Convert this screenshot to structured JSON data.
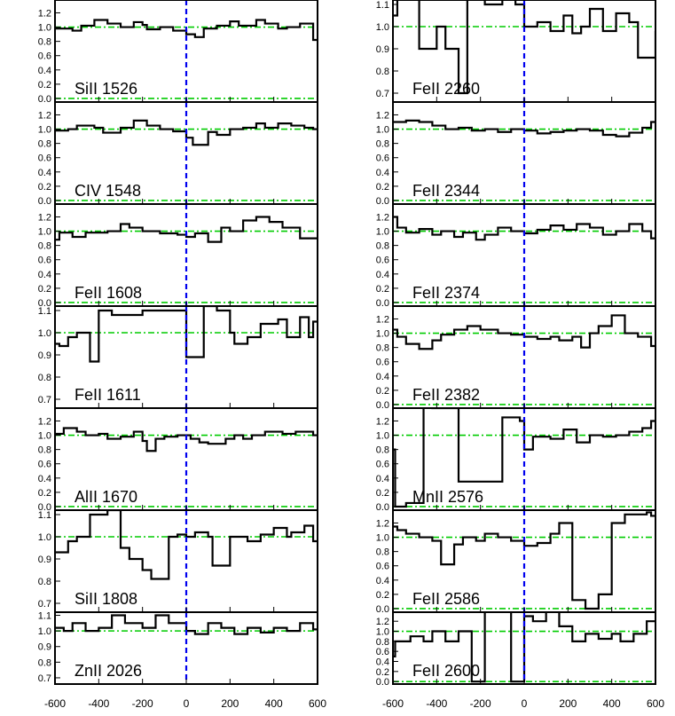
{
  "chart_data": {
    "type": "line",
    "xlabel": "",
    "ylabel": "",
    "xlim": [
      -600,
      600
    ],
    "xticks": [
      -600,
      -400,
      -200,
      0,
      200,
      400,
      600
    ],
    "grid": false,
    "reference_lines": {
      "continuum": [
        0.0,
        1.0
      ],
      "zero_velocity": 0
    },
    "colors": {
      "spectrum": "#000000",
      "continuum": "#00cc00",
      "zero": "#0000ee"
    },
    "columns": [
      {
        "panels": [
          {
            "label": "SiII 1526",
            "ylim": [
              -0.05,
              1.38
            ],
            "yticks": [
              0.0,
              0.2,
              0.4,
              0.6,
              0.8,
              1.0,
              1.2
            ],
            "step_x": [
              -600,
              -520,
              -480,
              -420,
              -360,
              -300,
              -240,
              -200,
              -180,
              -120,
              -60,
              0,
              40,
              80,
              140,
              200,
              240,
              320,
              360,
              420,
              460,
              520,
              580,
              600
            ],
            "step_y": [
              0.98,
              0.95,
              1.02,
              1.1,
              1.05,
              1.0,
              1.07,
              1.03,
              0.97,
              1.0,
              0.95,
              0.9,
              0.86,
              0.98,
              1.02,
              1.08,
              1.02,
              1.1,
              1.05,
              0.98,
              1.0,
              1.05,
              0.82,
              0.82
            ]
          },
          {
            "label": "CIV 1548",
            "ylim": [
              -0.05,
              1.38
            ],
            "yticks": [
              0.0,
              0.2,
              0.4,
              0.6,
              0.8,
              1.0,
              1.2
            ],
            "step_x": [
              -600,
              -540,
              -500,
              -420,
              -380,
              -300,
              -240,
              -180,
              -120,
              -60,
              0,
              30,
              100,
              140,
              200,
              260,
              320,
              360,
              420,
              480,
              540,
              580,
              600
            ],
            "step_y": [
              0.98,
              1.0,
              1.05,
              1.02,
              0.95,
              1.02,
              1.12,
              1.05,
              1.0,
              0.97,
              0.88,
              0.78,
              0.96,
              0.92,
              1.0,
              1.02,
              1.08,
              1.02,
              1.08,
              1.05,
              1.02,
              1.0,
              1.0
            ]
          },
          {
            "label": "FeII 1608",
            "ylim": [
              -0.05,
              1.38
            ],
            "yticks": [
              0.0,
              0.2,
              0.4,
              0.6,
              0.8,
              1.0,
              1.2
            ],
            "step_x": [
              -600,
              -580,
              -520,
              -460,
              -360,
              -300,
              -260,
              -200,
              -120,
              -40,
              0,
              40,
              100,
              160,
              200,
              260,
              320,
              380,
              440,
              520,
              580,
              600
            ],
            "step_y": [
              0.88,
              0.98,
              0.92,
              0.98,
              1.0,
              1.1,
              1.05,
              1.0,
              0.97,
              0.95,
              0.92,
              0.97,
              0.85,
              1.05,
              1.0,
              1.15,
              1.2,
              1.13,
              1.05,
              0.9,
              0.9,
              0.9
            ]
          },
          {
            "label": "FeII 1611",
            "ylim": [
              0.66,
              1.12
            ],
            "yticks": [
              0.7,
              0.8,
              0.9,
              1.0,
              1.1
            ],
            "step_x": [
              -600,
              -580,
              -540,
              -500,
              -440,
              -400,
              -340,
              -200,
              -60,
              0,
              80,
              140,
              200,
              220,
              280,
              340,
              420,
              460,
              520,
              560,
              580,
              600
            ],
            "step_y": [
              0.95,
              0.94,
              0.98,
              1.0,
              0.87,
              1.1,
              1.08,
              1.1,
              1.1,
              0.89,
              1.12,
              1.1,
              1.0,
              0.95,
              0.98,
              1.04,
              1.06,
              0.98,
              1.07,
              0.98,
              1.05,
              1.05
            ]
          },
          {
            "label": "AlII 1670",
            "ylim": [
              -0.05,
              1.38
            ],
            "yticks": [
              0.0,
              0.2,
              0.4,
              0.6,
              0.8,
              1.0,
              1.2
            ],
            "step_x": [
              -600,
              -560,
              -500,
              -460,
              -400,
              -360,
              -300,
              -240,
              -200,
              -180,
              -140,
              -100,
              -40,
              20,
              60,
              100,
              180,
              220,
              260,
              300,
              360,
              440,
              500,
              580,
              600
            ],
            "step_y": [
              1.02,
              1.1,
              1.05,
              1.0,
              1.02,
              0.95,
              0.98,
              1.05,
              0.92,
              0.78,
              0.95,
              0.98,
              1.0,
              0.95,
              0.9,
              0.88,
              0.95,
              1.0,
              0.95,
              1.0,
              1.05,
              1.02,
              1.05,
              1.0,
              1.0
            ]
          },
          {
            "label": "SiII 1808",
            "ylim": [
              0.66,
              1.12
            ],
            "yticks": [
              0.7,
              0.8,
              0.9,
              1.0,
              1.1
            ],
            "step_x": [
              -600,
              -540,
              -500,
              -440,
              -360,
              -300,
              -260,
              -200,
              -160,
              -80,
              -40,
              0,
              40,
              100,
              120,
              200,
              280,
              340,
              400,
              460,
              480,
              540,
              580,
              600
            ],
            "step_y": [
              0.93,
              0.98,
              1.0,
              1.1,
              1.12,
              0.95,
              0.9,
              0.85,
              0.81,
              1.0,
              1.01,
              1.0,
              1.02,
              1.0,
              0.87,
              1.0,
              0.98,
              1.01,
              1.04,
              1.0,
              1.02,
              1.05,
              0.98,
              0.98
            ]
          },
          {
            "label": "ZnII 2026",
            "ylim": [
              0.66,
              1.12
            ],
            "yticks": [
              0.7,
              0.8,
              0.9,
              1.0,
              1.1
            ],
            "step_x": [
              -600,
              -560,
              -520,
              -460,
              -400,
              -340,
              -280,
              -200,
              -140,
              -80,
              0,
              40,
              100,
              160,
              220,
              280,
              340,
              400,
              460,
              520,
              580,
              600
            ],
            "step_y": [
              1.02,
              1.0,
              1.05,
              1.0,
              1.02,
              1.1,
              1.05,
              1.02,
              1.1,
              1.05,
              1.0,
              0.98,
              1.05,
              1.02,
              0.98,
              1.02,
              0.99,
              1.02,
              1.0,
              1.05,
              1.01,
              1.01
            ]
          }
        ]
      },
      {
        "panels": [
          {
            "label": "FeII 2260",
            "ylim": [
              0.66,
              1.12
            ],
            "yticks": [
              0.7,
              0.8,
              0.9,
              1.0,
              1.1
            ],
            "step_x": [
              -600,
              -580,
              -520,
              -480,
              -400,
              -360,
              -300,
              -260,
              -180,
              -100,
              -40,
              0,
              60,
              120,
              180,
              220,
              260,
              300,
              360,
              420,
              480,
              520,
              600
            ],
            "step_y": [
              1.05,
              1.2,
              1.2,
              0.9,
              1.0,
              0.9,
              0.7,
              1.2,
              1.1,
              1.2,
              1.1,
              1.0,
              1.02,
              0.98,
              1.05,
              0.97,
              1.0,
              1.08,
              0.98,
              1.06,
              1.02,
              0.86,
              0.98
            ]
          },
          {
            "label": "FeII 2344",
            "ylim": [
              -0.05,
              1.38
            ],
            "yticks": [
              0.0,
              0.2,
              0.4,
              0.6,
              0.8,
              1.0,
              1.2
            ],
            "step_x": [
              -600,
              -540,
              -480,
              -420,
              -360,
              -300,
              -240,
              -180,
              -120,
              -60,
              0,
              60,
              120,
              180,
              240,
              300,
              360,
              420,
              480,
              540,
              580,
              600
            ],
            "step_y": [
              1.1,
              1.12,
              1.1,
              1.05,
              1.0,
              1.02,
              0.98,
              1.0,
              0.96,
              1.0,
              0.98,
              0.94,
              0.96,
              0.98,
              1.0,
              0.98,
              0.92,
              0.9,
              0.95,
              1.02,
              1.1,
              1.1
            ]
          },
          {
            "label": "FeII 2374",
            "ylim": [
              -0.05,
              1.38
            ],
            "yticks": [
              0.0,
              0.2,
              0.4,
              0.6,
              0.8,
              1.0,
              1.2
            ],
            "step_x": [
              -600,
              -580,
              -540,
              -480,
              -420,
              -380,
              -320,
              -280,
              -220,
              -180,
              -120,
              -60,
              0,
              60,
              120,
              180,
              240,
              300,
              360,
              420,
              480,
              540,
              580,
              600
            ],
            "step_y": [
              1.2,
              1.05,
              0.98,
              1.03,
              0.95,
              1.0,
              0.92,
              0.98,
              0.88,
              0.95,
              1.05,
              1.0,
              0.97,
              1.02,
              1.08,
              1.02,
              1.1,
              1.05,
              0.95,
              1.0,
              1.1,
              1.0,
              0.9,
              0.9
            ]
          },
          {
            "label": "FeII 2382",
            "ylim": [
              -0.05,
              1.38
            ],
            "yticks": [
              0.0,
              0.2,
              0.4,
              0.6,
              0.8,
              1.0,
              1.2
            ],
            "step_x": [
              -600,
              -580,
              -540,
              -480,
              -420,
              -380,
              -320,
              -260,
              -200,
              -120,
              -60,
              0,
              60,
              120,
              160,
              220,
              260,
              300,
              340,
              400,
              460,
              520,
              580,
              600
            ],
            "step_y": [
              1.05,
              0.95,
              0.85,
              0.78,
              0.9,
              0.98,
              1.05,
              1.1,
              1.05,
              1.0,
              0.98,
              0.95,
              0.92,
              0.95,
              0.9,
              0.95,
              0.8,
              1.0,
              1.1,
              1.25,
              1.0,
              0.95,
              0.82,
              0.82
            ]
          },
          {
            "label": "MnII 2576",
            "ylim": [
              -0.05,
              1.38
            ],
            "yticks": [
              0.0,
              0.2,
              0.4,
              0.6,
              0.8,
              1.0,
              1.2
            ],
            "step_x": [
              -600,
              -590,
              -560,
              -540,
              -460,
              -420,
              -360,
              -300,
              -160,
              -100,
              -20,
              0,
              40,
              120,
              180,
              240,
              300,
              360,
              420,
              480,
              540,
              580,
              600
            ],
            "step_y": [
              0.8,
              0.0,
              0.0,
              0.05,
              1.45,
              1.38,
              1.38,
              0.35,
              0.35,
              1.25,
              1.2,
              0.8,
              0.98,
              0.95,
              1.08,
              0.9,
              1.0,
              0.98,
              1.0,
              1.05,
              1.1,
              1.2,
              1.2
            ]
          },
          {
            "label": "FeII 2586",
            "ylim": [
              -0.05,
              1.38
            ],
            "yticks": [
              0.0,
              0.2,
              0.4,
              0.6,
              0.8,
              1.0,
              1.2
            ],
            "step_x": [
              -600,
              -580,
              -540,
              -480,
              -420,
              -380,
              -320,
              -280,
              -220,
              -180,
              -120,
              -60,
              0,
              60,
              120,
              160,
              220,
              280,
              340,
              400,
              460,
              520,
              560,
              580,
              600
            ],
            "step_y": [
              1.15,
              1.1,
              1.05,
              1.0,
              0.95,
              0.62,
              0.9,
              1.0,
              0.95,
              1.05,
              1.0,
              0.95,
              0.88,
              0.92,
              1.05,
              1.2,
              0.12,
              0.0,
              0.2,
              1.2,
              1.32,
              1.32,
              1.35,
              1.3,
              1.3
            ]
          },
          {
            "label": "FeII 2600",
            "ylim": [
              -0.05,
              1.38
            ],
            "yticks": [
              0.0,
              0.2,
              0.4,
              0.6,
              0.8,
              1.0,
              1.2
            ],
            "step_x": [
              -600,
              -590,
              -520,
              -460,
              -420,
              -360,
              -300,
              -240,
              -180,
              -60,
              0,
              40,
              100,
              160,
              220,
              280,
              340,
              400,
              440,
              500,
              560,
              600
            ],
            "step_y": [
              0.5,
              0.8,
              0.9,
              0.8,
              1.0,
              0.8,
              1.0,
              0.0,
              1.5,
              0.0,
              1.3,
              1.2,
              1.4,
              1.1,
              0.8,
              0.95,
              0.85,
              0.95,
              0.8,
              0.95,
              1.2,
              1.2
            ]
          }
        ]
      }
    ]
  }
}
